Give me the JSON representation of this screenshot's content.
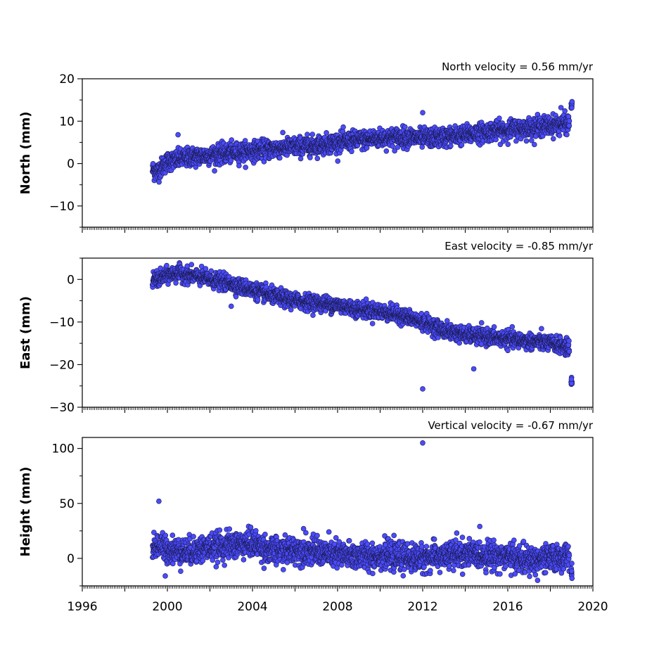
{
  "chart_data": [
    {
      "type": "scatter",
      "title": "North velocity = 0.56 mm/yr",
      "ylabel": "North (mm)",
      "xlabel": "",
      "xlim": [
        1996,
        2020
      ],
      "ylim": [
        -15,
        20
      ],
      "yticks": [
        -10,
        0,
        10,
        20
      ],
      "ytick_labels": [
        "−10",
        "0",
        "10",
        "20"
      ],
      "xticks": [
        1996,
        1998,
        2000,
        2002,
        2004,
        2006,
        2008,
        2010,
        2012,
        2014,
        2016,
        2018,
        2020
      ],
      "marker_color": "#4b4bff",
      "marker_edge": "#1a1a4d",
      "series": [
        {
          "x": [
            1999.3,
            1999.5,
            1999.7,
            2000.0,
            2000.5,
            2001.0,
            2002.0,
            2003.0,
            2004.0,
            2005.0,
            2006.0,
            2007.0,
            2008.0,
            2009.0,
            2010.0,
            2011.0,
            2012.0,
            2013.0,
            2014.0,
            2015.0,
            2016.0,
            2017.0,
            2018.0,
            2018.9,
            2019.0
          ],
          "y": [
            -1.5,
            -2.0,
            -1.0,
            0.5,
            1.0,
            1.5,
            2.0,
            2.5,
            3.0,
            3.5,
            4.0,
            4.3,
            5.0,
            5.5,
            6.0,
            6.3,
            6.0,
            6.2,
            6.8,
            7.5,
            8.0,
            8.5,
            9.0,
            9.5,
            13.5
          ]
        }
      ],
      "outliers": [
        {
          "x": 2000.5,
          "y": 6.8
        },
        {
          "x": 2012.0,
          "y": 12.0
        },
        {
          "x": 2018.5,
          "y": 13.2
        }
      ]
    },
    {
      "type": "scatter",
      "title": "East velocity = -0.85 mm/yr",
      "ylabel": "East (mm)",
      "xlabel": "",
      "xlim": [
        1996,
        2020
      ],
      "ylim": [
        -30,
        5
      ],
      "yticks": [
        -30,
        -20,
        -10,
        0
      ],
      "ytick_labels": [
        "−30",
        "−20",
        "−10",
        "0"
      ],
      "xticks": [
        1996,
        1998,
        2000,
        2002,
        2004,
        2006,
        2008,
        2010,
        2012,
        2014,
        2016,
        2018,
        2020
      ],
      "marker_color": "#4b4bff",
      "marker_edge": "#1a1a4d",
      "series": [
        {
          "x": [
            1999.3,
            1999.6,
            2000.0,
            2000.5,
            2001.0,
            2002.0,
            2003.0,
            2004.0,
            2005.0,
            2006.0,
            2007.0,
            2008.0,
            2009.0,
            2010.0,
            2011.0,
            2012.0,
            2012.5,
            2013.0,
            2014.0,
            2015.0,
            2016.0,
            2017.0,
            2018.0,
            2018.9,
            2019.0
          ],
          "y": [
            0.0,
            0.0,
            1.0,
            1.5,
            1.0,
            0.0,
            -1.0,
            -2.5,
            -4.0,
            -5.0,
            -5.5,
            -6.0,
            -7.0,
            -7.5,
            -8.5,
            -10.0,
            -11.0,
            -12.0,
            -13.0,
            -13.5,
            -14.0,
            -14.5,
            -15.0,
            -16.0,
            -24.0
          ]
        }
      ],
      "outliers": [
        {
          "x": 2012.0,
          "y": -25.7
        },
        {
          "x": 2014.4,
          "y": -21.0
        },
        {
          "x": 2003.0,
          "y": -6.3
        }
      ]
    },
    {
      "type": "scatter",
      "title": "Vertical velocity = -0.67 mm/yr",
      "ylabel": "Height (mm)",
      "xlabel": "",
      "xlim": [
        1996,
        2020
      ],
      "ylim": [
        -25,
        110
      ],
      "yticks": [
        0,
        50,
        100
      ],
      "ytick_labels": [
        "0",
        "50",
        "100"
      ],
      "xticks": [
        1996,
        2000,
        2004,
        2008,
        2012,
        2016,
        2020
      ],
      "xtick_labels": [
        "1996",
        "2000",
        "2004",
        "2008",
        "2012",
        "2016",
        "2020"
      ],
      "marker_color": "#4b4bff",
      "marker_edge": "#1a1a4d",
      "series": [
        {
          "x": [
            1999.3,
            1999.6,
            2000.0,
            2001.0,
            2002.0,
            2003.0,
            2004.0,
            2005.0,
            2006.0,
            2007.0,
            2008.0,
            2009.0,
            2010.0,
            2011.0,
            2012.0,
            2013.0,
            2014.0,
            2015.0,
            2016.0,
            2017.0,
            2018.0,
            2018.9,
            2019.0
          ],
          "y": [
            10.0,
            12.0,
            8.0,
            6.0,
            10.0,
            12.0,
            14.0,
            6.0,
            8.0,
            6.0,
            3.0,
            2.0,
            3.0,
            1.0,
            0.0,
            2.0,
            4.0,
            3.0,
            2.0,
            -2.0,
            0.0,
            2.0,
            -12.0
          ]
        }
      ],
      "outliers": [
        {
          "x": 1999.6,
          "y": 52.0
        },
        {
          "x": 2012.0,
          "y": 105.0
        },
        {
          "x": 2006.4,
          "y": 27.0
        },
        {
          "x": 2013.6,
          "y": 23.0
        },
        {
          "x": 1999.9,
          "y": -16.0
        },
        {
          "x": 2017.4,
          "y": -20.0
        }
      ]
    }
  ]
}
